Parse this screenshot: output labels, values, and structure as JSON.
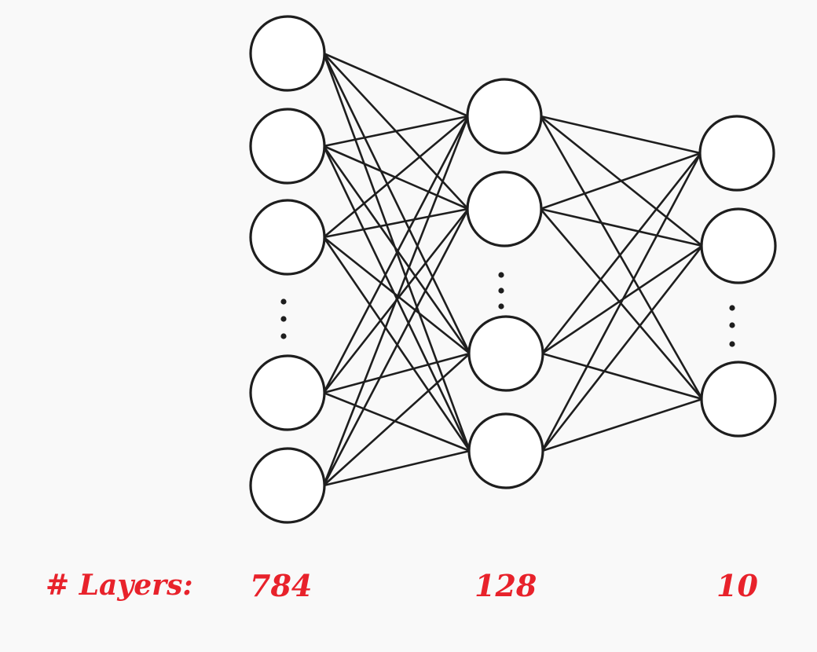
{
  "diagram": {
    "type": "feed-forward-neural-network",
    "layers": [
      {
        "size": "784",
        "color": "#1e1e1e"
      },
      {
        "size": "128",
        "color": "#1e1e1e"
      },
      {
        "size": "10",
        "color": "#1e1e1e"
      }
    ],
    "legend": {
      "title": "# Layers:",
      "input_size": "784",
      "hidden_size": "128",
      "output_size": "10"
    },
    "colors": {
      "background": "#f9f9f9",
      "stroke": "#1e1e1e",
      "label": "#e8222b"
    },
    "connectivity": "fully-connected"
  }
}
